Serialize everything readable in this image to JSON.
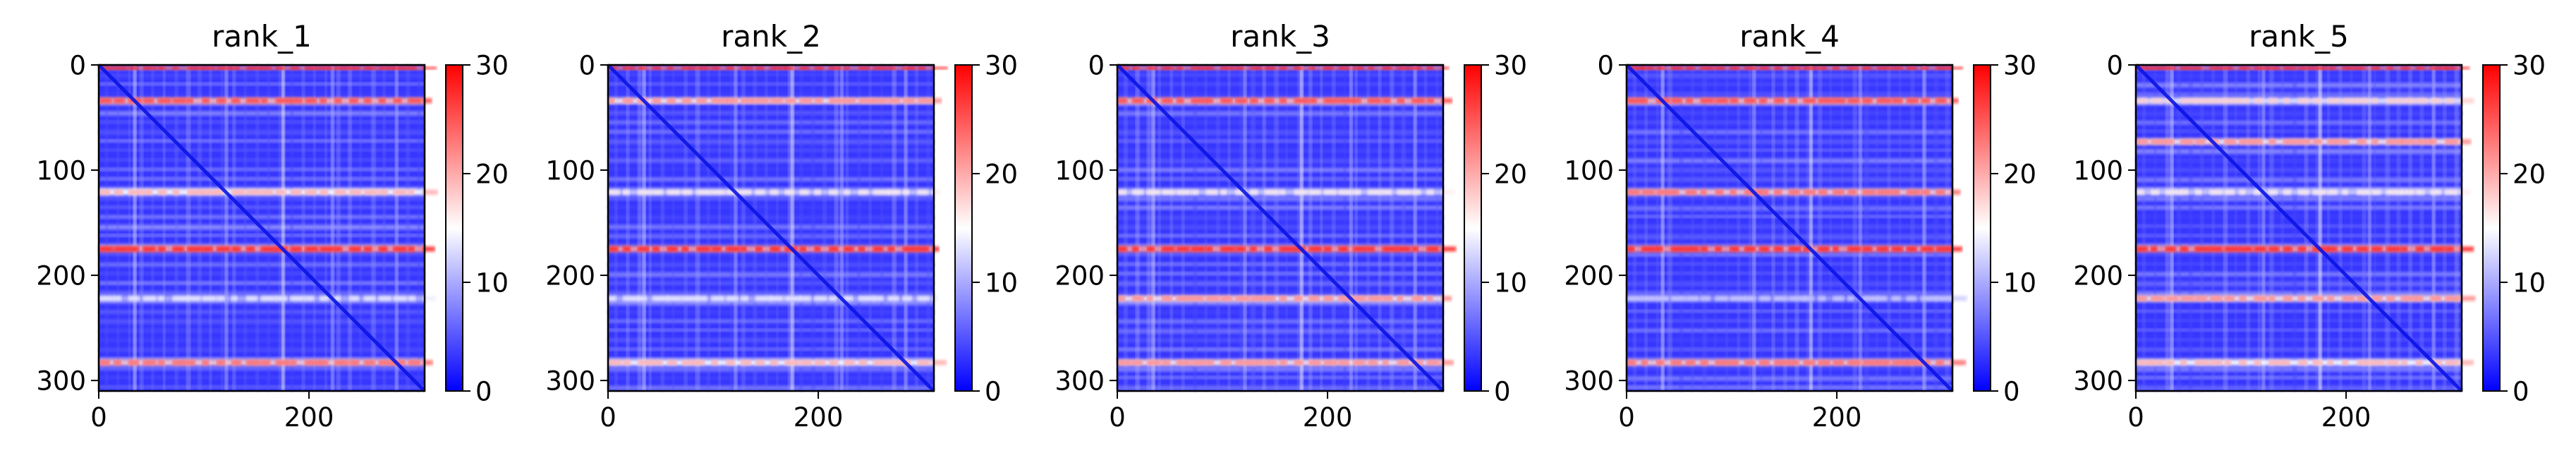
{
  "chart_data": [
    {
      "type": "heatmap",
      "title": "rank_1",
      "n": 310,
      "xticks": [
        0,
        200
      ],
      "yticks": [
        0,
        100,
        200,
        300
      ],
      "colorbar": {
        "ticks": [
          0,
          10,
          20,
          30
        ],
        "range": [
          0,
          30
        ],
        "colormap": "bwr"
      },
      "bands": [
        [
          3,
          30
        ],
        [
          34,
          26
        ],
        [
          121,
          20
        ],
        [
          175,
          28
        ],
        [
          222,
          14
        ],
        [
          283,
          24
        ]
      ]
    },
    {
      "type": "heatmap",
      "title": "rank_2",
      "n": 310,
      "xticks": [
        0,
        200
      ],
      "yticks": [
        0,
        100,
        200,
        300
      ],
      "colorbar": {
        "ticks": [
          0,
          10,
          20,
          30
        ],
        "range": [
          0,
          30
        ],
        "colormap": "bwr"
      },
      "bands": [
        [
          3,
          30
        ],
        [
          34,
          22
        ],
        [
          121,
          16
        ],
        [
          175,
          28
        ],
        [
          222,
          14
        ],
        [
          283,
          20
        ]
      ]
    },
    {
      "type": "heatmap",
      "title": "rank_3",
      "n": 310,
      "xticks": [
        0,
        200
      ],
      "yticks": [
        0,
        100,
        200,
        300
      ],
      "colorbar": {
        "ticks": [
          0,
          10,
          20,
          30
        ],
        "range": [
          0,
          30
        ],
        "colormap": "bwr"
      },
      "bands": [
        [
          3,
          30
        ],
        [
          34,
          26
        ],
        [
          121,
          16
        ],
        [
          175,
          28
        ],
        [
          222,
          22
        ],
        [
          283,
          22
        ]
      ]
    },
    {
      "type": "heatmap",
      "title": "rank_4",
      "n": 310,
      "xticks": [
        0,
        200
      ],
      "yticks": [
        0,
        100,
        200,
        300
      ],
      "colorbar": {
        "ticks": [
          0,
          10,
          20,
          30
        ],
        "range": [
          0,
          30
        ],
        "colormap": "bwr"
      },
      "bands": [
        [
          3,
          30
        ],
        [
          34,
          26
        ],
        [
          121,
          24
        ],
        [
          175,
          28
        ],
        [
          222,
          12
        ],
        [
          283,
          24
        ]
      ]
    },
    {
      "type": "heatmap",
      "title": "rank_5",
      "n": 310,
      "xticks": [
        0,
        200
      ],
      "yticks": [
        0,
        100,
        200,
        300
      ],
      "colorbar": {
        "ticks": [
          0,
          10,
          20,
          30
        ],
        "range": [
          0,
          30
        ],
        "colormap": "bwr"
      },
      "bands": [
        [
          3,
          30
        ],
        [
          34,
          18
        ],
        [
          73,
          22
        ],
        [
          121,
          16
        ],
        [
          175,
          28
        ],
        [
          222,
          22
        ],
        [
          283,
          20
        ]
      ]
    }
  ]
}
